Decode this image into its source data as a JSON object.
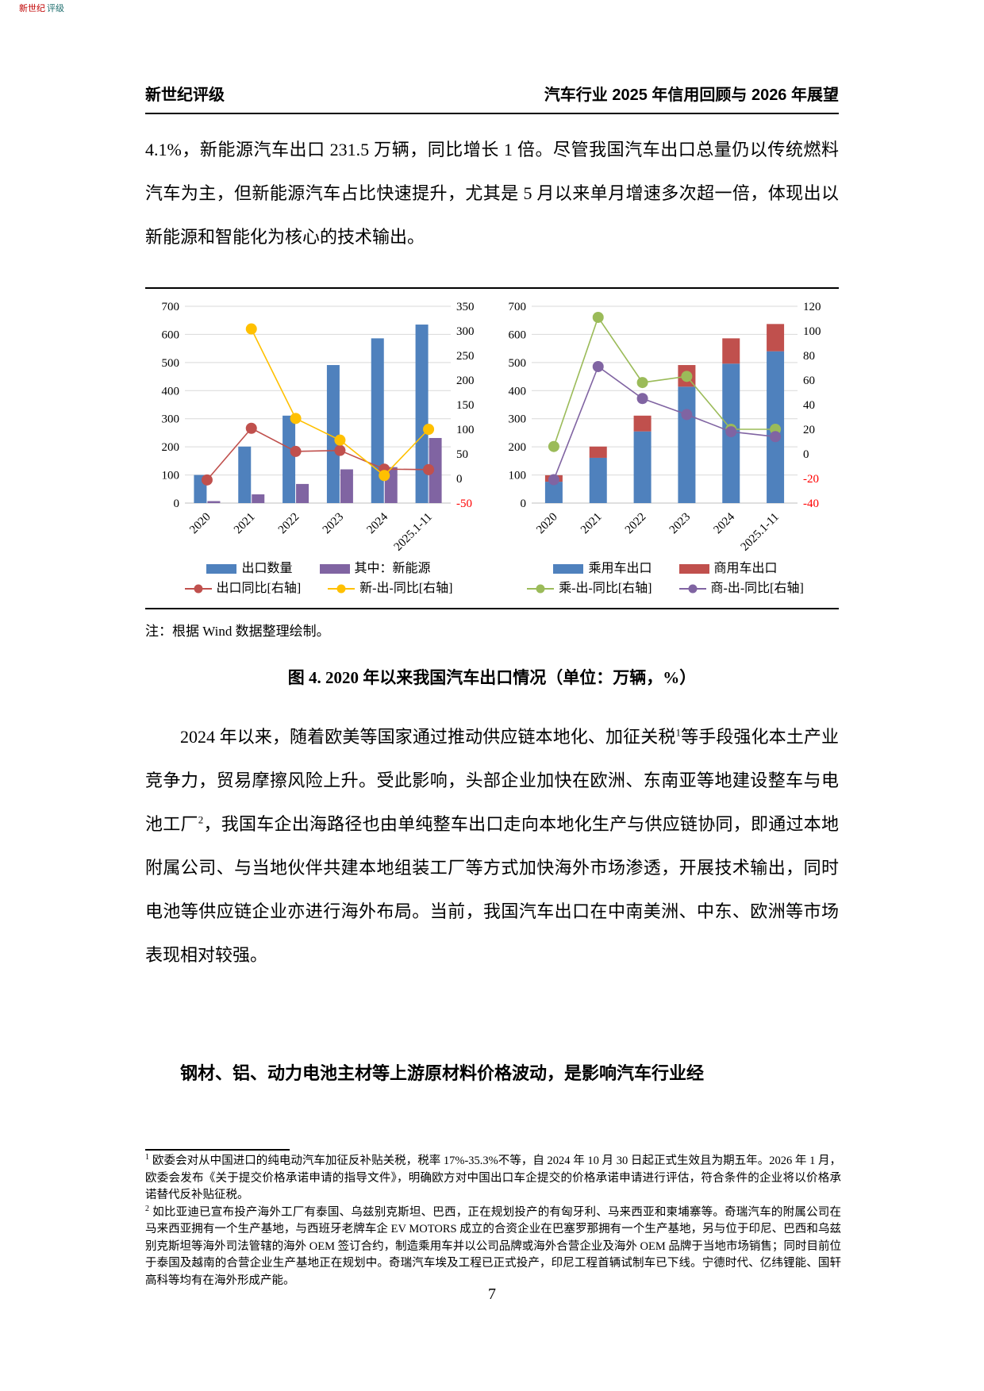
{
  "logo": {
    "part1": "新世纪",
    "part2": "评级"
  },
  "header": {
    "left": "新世纪评级",
    "right": "汽车行业 2025 年信用回顾与 2026 年展望"
  },
  "paragraphs": {
    "p1": "4.1%，新能源汽车出口 231.5 万辆，同比增长 1 倍。尽管我国汽车出口总量仍以传统燃料汽车为主，但新能源汽车占比快速提升，尤其是 5 月以来单月增速多次超一倍，体现出以新能源和智能化为核心的技术输出。",
    "p2_segments": [
      {
        "t": "2024 年以来，随着欧美等国家通过推动供应链本地化、加征关税"
      },
      {
        "sup": "1"
      },
      {
        "t": "等手段强化本土产业竞争力，贸易摩擦风险上升。受此影响，头部企业加快在欧洲、东南亚等地建设整车与电池工厂"
      },
      {
        "sup": "2"
      },
      {
        "t": "，我国车企出海路径也由单纯整车出口走向本地化生产与供应链协同，即通过本地附属公司、与当地伙伴共建本地组装工厂等方式加快海外市场渗透，开展技术输出，同时电池等供应链企业亦进行海外布局。当前，我国汽车出口在中南美洲、中东、欧洲等市场表现相对较强。"
      }
    ],
    "p3_bold": "钢材、铝、动力电池主材等上游原材料价格波动，是影响汽车行业经"
  },
  "figure": {
    "note": "注：根据 Wind 数据整理绘制。",
    "caption": "图 4. 2020 年以来我国汽车出口情况（单位：万辆，%）"
  },
  "chart_data": [
    {
      "type": "bar",
      "bar_mode": "grouped",
      "categories": [
        "2020",
        "2021",
        "2022",
        "2023",
        "2024",
        "2025.1-11"
      ],
      "left_axis": {
        "min": 0,
        "max": 700,
        "step": 100
      },
      "right_axis": {
        "min": -50,
        "max": 350,
        "step": 50
      },
      "bar_series": [
        {
          "name": "出口数量",
          "color": "#4F81BD",
          "axis": "left",
          "values": [
            100,
            201,
            311,
            491,
            586,
            635
          ]
        },
        {
          "name": "其中：新能源",
          "color": "#8064A2",
          "axis": "left",
          "values": [
            7,
            31,
            68,
            120,
            128,
            231.5
          ]
        }
      ],
      "line_series": [
        {
          "name": "出口同比[右轴]",
          "color": "#C0504D",
          "axis": "right",
          "values": [
            -3,
            102,
            55,
            57,
            19,
            18
          ]
        },
        {
          "name": "新-出-同比[右轴]",
          "color": "#FFC000",
          "axis": "right",
          "values": [
            null,
            304,
            122,
            78,
            6,
            100
          ]
        }
      ],
      "grid": true,
      "legend_position": "bottom",
      "units": "万辆 / %"
    },
    {
      "type": "bar",
      "bar_mode": "stacked",
      "categories": [
        "2020",
        "2021",
        "2022",
        "2023",
        "2024",
        "2025.1-11"
      ],
      "left_axis": {
        "min": 0,
        "max": 700,
        "step": 100
      },
      "right_axis": {
        "min": -40,
        "max": 120,
        "step": 20
      },
      "bar_series": [
        {
          "name": "乘用车出口",
          "color": "#4F81BD",
          "axis": "left",
          "values": [
            76,
            161,
            255,
            414,
            496,
            540
          ]
        },
        {
          "name": "商用车出口",
          "color": "#C0504D",
          "axis": "left",
          "values": [
            23,
            40,
            56,
            77,
            90,
            97
          ]
        }
      ],
      "line_series": [
        {
          "name": "乘-出-同比[右轴]",
          "color": "#9BBB59",
          "axis": "right",
          "values": [
            6,
            111,
            58,
            63,
            20,
            20
          ]
        },
        {
          "name": "商-出-同比[右轴]",
          "color": "#8064A2",
          "axis": "right",
          "values": [
            -21,
            71,
            45,
            32,
            18,
            14
          ]
        }
      ],
      "grid": true,
      "legend_position": "bottom",
      "units": "万辆 / %"
    }
  ],
  "footnotes": [
    {
      "marker": "1",
      "text": "欧委会对从中国进口的纯电动汽车加征反补贴关税，税率 17%-35.3%不等，自 2024 年 10 月 30 日起正式生效且为期五年。2026 年 1 月，欧委会发布《关于提交价格承诺申请的指导文件》，明确欧方对中国出口车企提交的价格承诺申请进行评估，符合条件的企业将以价格承诺替代反补贴征税。"
    },
    {
      "marker": "2",
      "text": "如比亚迪已宣布投产海外工厂有泰国、乌兹别克斯坦、巴西，正在规划投产的有匈牙利、马来西亚和柬埔寨等。奇瑞汽车的附属公司在马来西亚拥有一个生产基地，与西班牙老牌车企 EV MOTORS 成立的合资企业在巴塞罗那拥有一个生产基地，另与位于印尼、巴西和乌兹别克斯坦等海外司法管辖的海外 OEM 签订合约，制造乘用车并以公司品牌或海外合营企业及海外 OEM 品牌于当地市场销售；同时目前位于泰国及越南的合营企业生产基地正在规划中。奇瑞汽车埃及工程已正式投产，印尼工程首辆试制车已下线。宁德时代、亿纬锂能、国轩高科等均有在海外形成产能。"
    }
  ],
  "page": {
    "number": "7"
  }
}
